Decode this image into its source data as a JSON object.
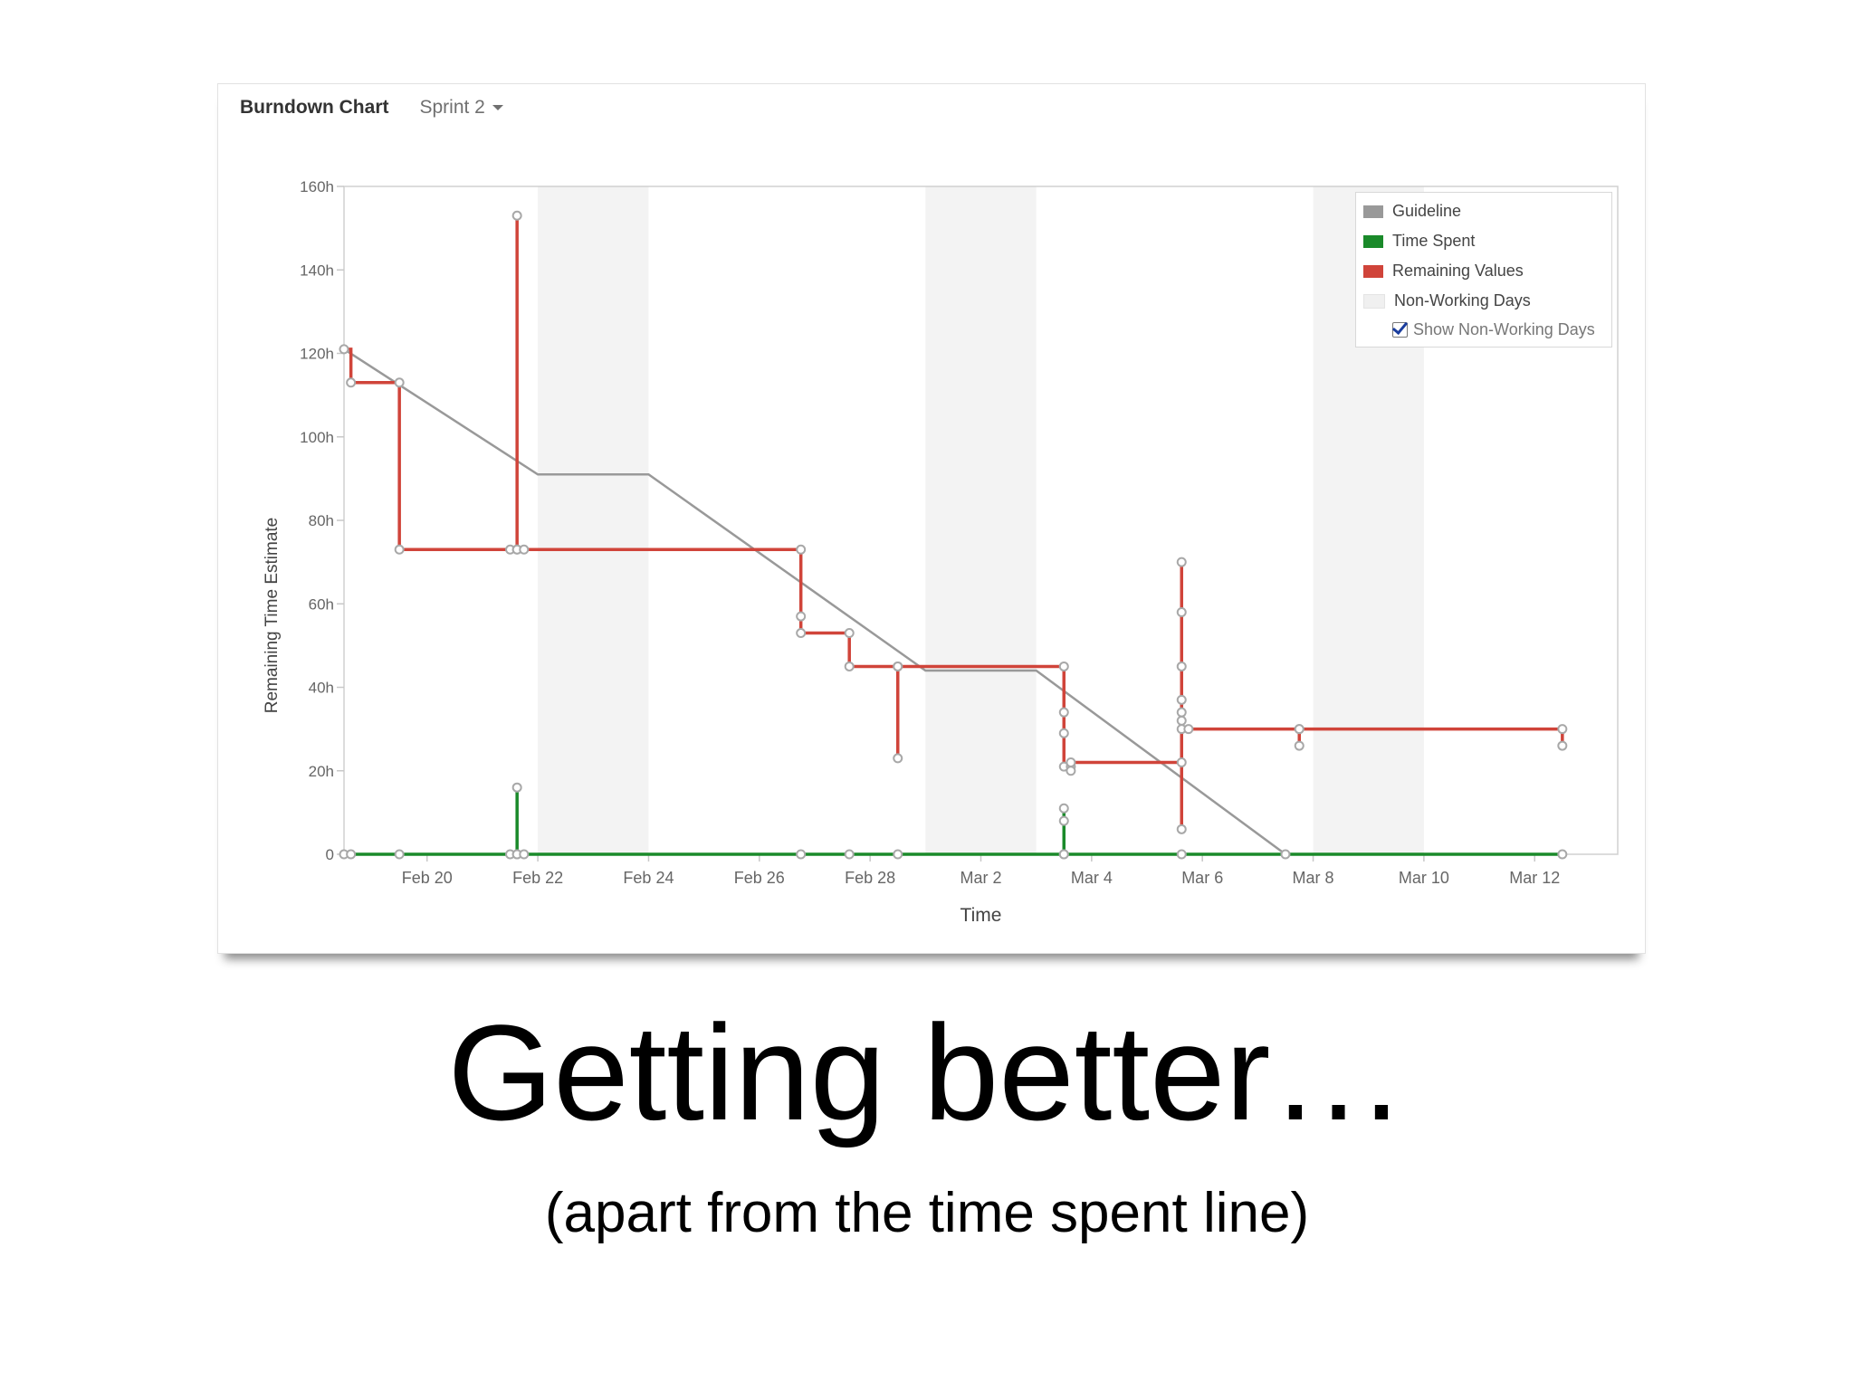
{
  "header": {
    "title": "Burndown Chart",
    "sprint_label": "Sprint 2"
  },
  "legend": {
    "items": [
      {
        "label": "Guideline",
        "color": "#999999"
      },
      {
        "label": "Time Spent",
        "color": "#1a8a2a"
      },
      {
        "label": "Remaining Values",
        "color": "#d0443a"
      },
      {
        "label": "Non-Working Days",
        "color": "#f0f0f0"
      }
    ],
    "toggle_label": "Show Non-Working Days",
    "toggle_checked": true
  },
  "slide": {
    "title": "Getting better…",
    "subtitle": "(apart from the time spent line)"
  },
  "chart_data": {
    "type": "line",
    "xlabel": "Time",
    "ylabel": "Remaining Time Estimate",
    "x_axis": {
      "start": "Feb 18 12:00",
      "end": "Mar 13 12:00"
    },
    "ylim": [
      0,
      160
    ],
    "y_ticks": [
      {
        "value": 0,
        "label": "0"
      },
      {
        "value": 20,
        "label": "20h"
      },
      {
        "value": 40,
        "label": "40h"
      },
      {
        "value": 60,
        "label": "60h"
      },
      {
        "value": 80,
        "label": "80h"
      },
      {
        "value": 100,
        "label": "100h"
      },
      {
        "value": 120,
        "label": "120h"
      },
      {
        "value": 140,
        "label": "140h"
      },
      {
        "value": 160,
        "label": "160h"
      }
    ],
    "x_ticks": [
      {
        "date": "Feb 20",
        "label": "Feb 20"
      },
      {
        "date": "Feb 22",
        "label": "Feb 22"
      },
      {
        "date": "Feb 24",
        "label": "Feb 24"
      },
      {
        "date": "Feb 26",
        "label": "Feb 26"
      },
      {
        "date": "Feb 28",
        "label": "Feb 28"
      },
      {
        "date": "Mar 2",
        "label": "Mar 2"
      },
      {
        "date": "Mar 4",
        "label": "Mar 4"
      },
      {
        "date": "Mar 6",
        "label": "Mar 6"
      },
      {
        "date": "Mar 8",
        "label": "Mar 8"
      },
      {
        "date": "Mar 10",
        "label": "Mar 10"
      },
      {
        "date": "Mar 12",
        "label": "Mar 12"
      }
    ],
    "non_working_days": [
      {
        "start": "Feb 22",
        "end": "Feb 24"
      },
      {
        "start": "Mar 1",
        "end": "Mar 3"
      },
      {
        "start": "Mar 8",
        "end": "Mar 10"
      }
    ],
    "series": [
      {
        "name": "Guideline",
        "color": "#999999",
        "points": [
          {
            "x": "Feb 18 12:00",
            "y": 121
          },
          {
            "x": "Feb 22",
            "y": 91
          },
          {
            "x": "Feb 24",
            "y": 91
          },
          {
            "x": "Mar 1",
            "y": 44
          },
          {
            "x": "Mar 3",
            "y": 44
          },
          {
            "x": "Mar 7 12:00",
            "y": 0
          }
        ]
      },
      {
        "name": "Remaining Values",
        "color": "#d0443a",
        "points": [
          {
            "x": "Feb 18 12:00",
            "y": 121
          },
          {
            "x": "Feb 18 15:00",
            "y": 113
          },
          {
            "x": "Feb 19 12:00",
            "y": 113
          },
          {
            "x": "Feb 19 12:00",
            "y": 73
          },
          {
            "x": "Feb 21 12:00",
            "y": 73
          },
          {
            "x": "Feb 21 15:00",
            "y": 73
          },
          {
            "x": "Feb 21 15:00",
            "y": 153
          },
          {
            "x": "Feb 21 15:00",
            "y": 73
          },
          {
            "x": "Feb 21 18:00",
            "y": 73
          },
          {
            "x": "Feb 26 18:00",
            "y": 73
          },
          {
            "x": "Feb 26 18:00",
            "y": 57
          },
          {
            "x": "Feb 26 18:00",
            "y": 53
          },
          {
            "x": "Feb 27 15:00",
            "y": 53
          },
          {
            "x": "Feb 27 15:00",
            "y": 45
          },
          {
            "x": "Feb 28 12:00",
            "y": 45
          },
          {
            "x": "Feb 28 12:00",
            "y": 23
          },
          {
            "x": "Feb 28 12:00",
            "y": 45
          },
          {
            "x": "Mar 3 12:00",
            "y": 45
          },
          {
            "x": "Mar 3 12:00",
            "y": 34
          },
          {
            "x": "Mar 3 12:00",
            "y": 29
          },
          {
            "x": "Mar 3 12:00",
            "y": 21
          },
          {
            "x": "Mar 3 15:00",
            "y": 21
          },
          {
            "x": "Mar 3 15:00",
            "y": 20
          },
          {
            "x": "Mar 3 15:00",
            "y": 22
          },
          {
            "x": "Mar 5 15:00",
            "y": 22
          },
          {
            "x": "Mar 5 15:00",
            "y": 6
          },
          {
            "x": "Mar 5 15:00",
            "y": 70
          },
          {
            "x": "Mar 5 15:00",
            "y": 58
          },
          {
            "x": "Mar 5 15:00",
            "y": 45
          },
          {
            "x": "Mar 5 15:00",
            "y": 37
          },
          {
            "x": "Mar 5 15:00",
            "y": 34
          },
          {
            "x": "Mar 5 15:00",
            "y": 32
          },
          {
            "x": "Mar 5 15:00",
            "y": 30
          },
          {
            "x": "Mar 5 18:00",
            "y": 30
          },
          {
            "x": "Mar 7 18:00",
            "y": 30
          },
          {
            "x": "Mar 7 18:00",
            "y": 26
          },
          {
            "x": "Mar 7 18:00",
            "y": 30
          },
          {
            "x": "Mar 12 12:00",
            "y": 30
          },
          {
            "x": "Mar 12 12:00",
            "y": 26
          }
        ]
      },
      {
        "name": "Time Spent",
        "color": "#1a8a2a",
        "points": [
          {
            "x": "Feb 18 12:00",
            "y": 0
          },
          {
            "x": "Feb 18 15:00",
            "y": 0
          },
          {
            "x": "Feb 19 12:00",
            "y": 0
          },
          {
            "x": "Feb 21 12:00",
            "y": 0
          },
          {
            "x": "Feb 21 15:00",
            "y": 0
          },
          {
            "x": "Feb 21 15:00",
            "y": 16
          },
          {
            "x": "Feb 21 15:00",
            "y": 0
          },
          {
            "x": "Feb 21 18:00",
            "y": 0
          },
          {
            "x": "Feb 26 18:00",
            "y": 0
          },
          {
            "x": "Feb 27 15:00",
            "y": 0
          },
          {
            "x": "Feb 28 12:00",
            "y": 0
          },
          {
            "x": "Mar 3 12:00",
            "y": 0
          },
          {
            "x": "Mar 3 12:00",
            "y": 11
          },
          {
            "x": "Mar 3 12:00",
            "y": 8
          },
          {
            "x": "Mar 3 12:00",
            "y": 0
          },
          {
            "x": "Mar 5 15:00",
            "y": 0
          },
          {
            "x": "Mar 7 12:00",
            "y": 0
          },
          {
            "x": "Mar 12 12:00",
            "y": 0
          }
        ]
      }
    ]
  }
}
